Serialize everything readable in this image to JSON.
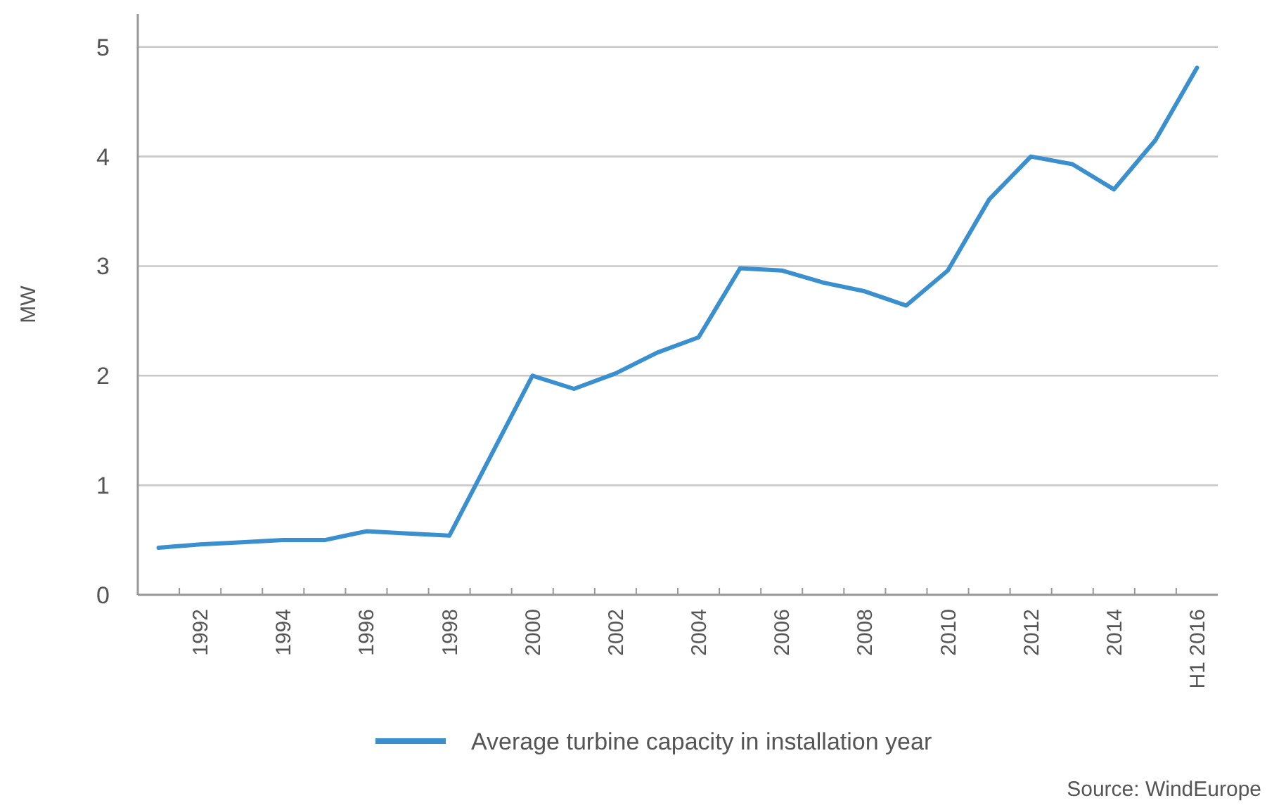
{
  "chart_data": {
    "type": "line",
    "ylabel": "MW",
    "categories": [
      null,
      "1992",
      null,
      "1994",
      null,
      "1996",
      null,
      "1998",
      null,
      "2000",
      null,
      "2002",
      null,
      "2004",
      null,
      "2006",
      null,
      "2008",
      null,
      "2010",
      null,
      "2012",
      null,
      "2014",
      null,
      "H1 2016"
    ],
    "series": [
      {
        "name": "Average turbine capacity in installation year",
        "color": "#3a8fcf",
        "values": [
          0.43,
          0.46,
          0.48,
          0.5,
          0.5,
          0.58,
          0.56,
          0.54,
          1.27,
          2.0,
          1.88,
          2.02,
          2.21,
          2.35,
          2.98,
          2.96,
          2.85,
          2.77,
          2.64,
          2.96,
          3.61,
          4.0,
          3.93,
          3.7,
          4.15,
          4.81
        ]
      }
    ],
    "ylim": [
      0,
      5.3
    ],
    "yticks": [
      0,
      1,
      2,
      3,
      4,
      5
    ],
    "grid": "y",
    "legend": "bottom",
    "marker": "none",
    "line_style": "solid",
    "annotations": [
      "Source: WindEurope"
    ]
  }
}
